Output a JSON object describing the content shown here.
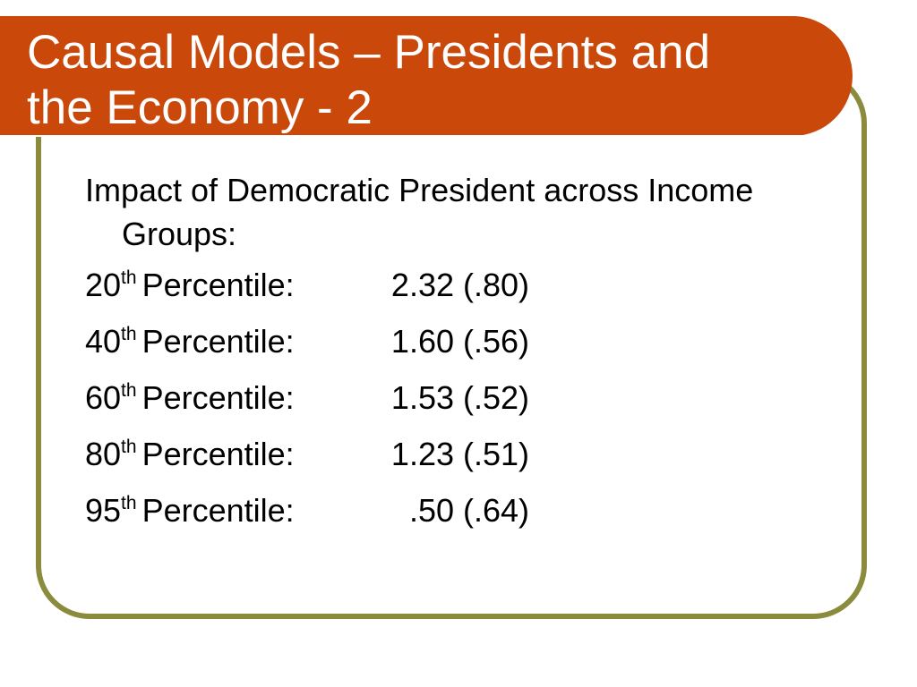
{
  "slide": {
    "title_line1": "Causal Models – Presidents and",
    "title_line2": "the Economy - 2",
    "intro": "Impact of Democratic President across Income Groups:",
    "rows": [
      {
        "number": "20",
        "suffix": "th",
        "label": "Percentile:",
        "value": "2.32",
        "se": "(.80)"
      },
      {
        "number": "40",
        "suffix": "th",
        "label": "Percentile:",
        "value": "1.60",
        "se": "(.56)"
      },
      {
        "number": "60",
        "suffix": "th",
        "label": "Percentile:",
        "value": "1.53",
        "se": "(.52)"
      },
      {
        "number": "80",
        "suffix": "th",
        "label": "Percentile:",
        "value": "1.23",
        "se": "(.51)"
      },
      {
        "number": "95",
        "suffix": "th",
        "label": "Percentile:",
        "value": ".50",
        "se": "(.64)"
      }
    ]
  },
  "colors": {
    "title_band": "#c9480a",
    "frame_border": "#8b8b3e",
    "title_text": "#ffffff"
  }
}
